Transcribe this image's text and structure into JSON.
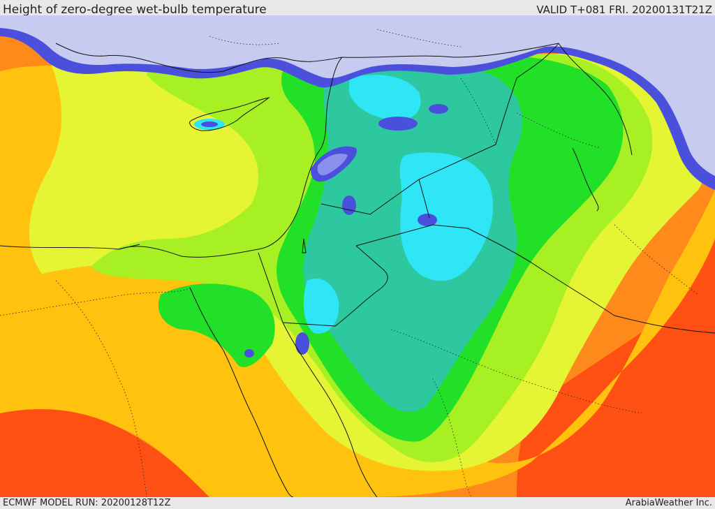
{
  "header": {
    "title": "Height of zero-degree wet-bulb temperature",
    "valid": "VALID T+081 FRI. 20200131T21Z"
  },
  "footer": {
    "model_run": "ECMWF MODEL RUN: 20200128T12Z",
    "brand": "ArabiaWeather Inc."
  },
  "map": {
    "palette": {
      "snow": "#c8cbf0",
      "blue": "#4a50dc",
      "light_blue": "#8a90ec",
      "cyan": "#2ee6f5",
      "teal": "#2ec8a0",
      "green": "#22e028",
      "lime": "#a6f023",
      "yellow": "#e6f533",
      "light_orange": "#ffc20e",
      "orange": "#ff8a1c",
      "red_orange": "#ff5014",
      "border": "#111111"
    },
    "place_lines": {
      "coastline": "coastline",
      "borders": "national-borders",
      "admin": "admin-boundaries"
    }
  }
}
